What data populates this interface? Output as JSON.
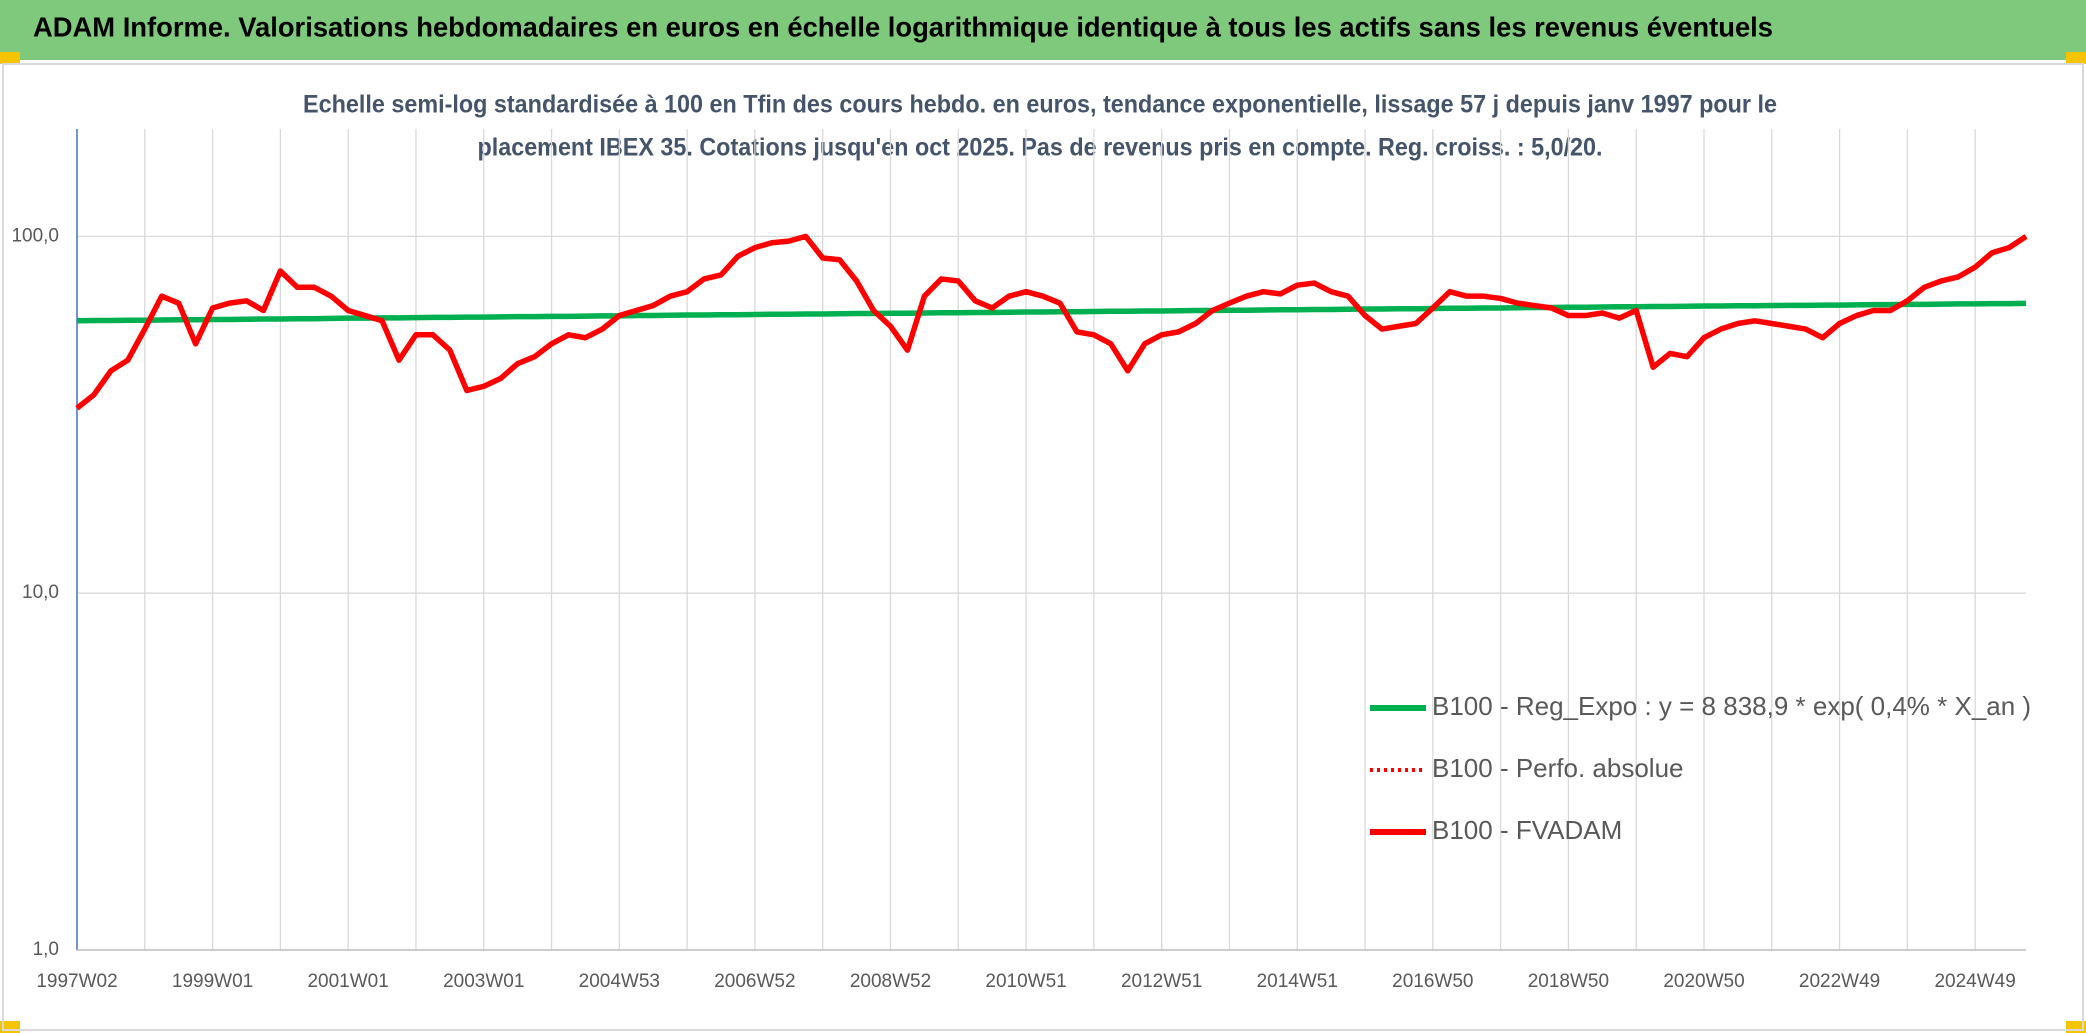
{
  "chart_data": {
    "type": "line",
    "title": "ADAM Informe. Valorisations hebdomadaires en euros en échelle logarithmique identique à tous les actifs sans les revenus éventuels",
    "subtitle": [
      "Echelle semi-log standardisée à 100 en Tfin des cours hebdo. en euros, tendance exponentielle, lissage 57 j depuis janv 1997 pour le",
      "placement IBEX 35. Cotations jusqu'en oct 2025. Pas de revenus pris en compte. Reg. croiss. : 5,0/20."
    ],
    "log_scale": true,
    "grid": true,
    "legend_position": "right",
    "ylim": [
      1,
      200
    ],
    "yticks": [
      {
        "value": 1,
        "label": "1,0"
      },
      {
        "value": 10,
        "label": "10,0"
      },
      {
        "value": 100,
        "label": "100,0"
      }
    ],
    "categories": [
      "1997W02",
      null,
      null,
      null,
      null,
      null,
      null,
      null,
      "1999W01",
      null,
      null,
      null,
      null,
      null,
      null,
      null,
      "2001W01",
      null,
      null,
      null,
      null,
      null,
      null,
      null,
      "2003W01",
      null,
      null,
      null,
      null,
      null,
      null,
      null,
      "2004W53",
      null,
      null,
      null,
      null,
      null,
      null,
      null,
      "2006W52",
      null,
      null,
      null,
      null,
      null,
      null,
      null,
      "2008W52",
      null,
      null,
      null,
      null,
      null,
      null,
      null,
      "2010W51",
      null,
      null,
      null,
      null,
      null,
      null,
      null,
      "2012W51",
      null,
      null,
      null,
      null,
      null,
      null,
      null,
      "2014W51",
      null,
      null,
      null,
      null,
      null,
      null,
      null,
      "2016W50",
      null,
      null,
      null,
      null,
      null,
      null,
      null,
      "2018W50",
      null,
      null,
      null,
      null,
      null,
      null,
      null,
      "2020W50",
      null,
      null,
      null,
      null,
      null,
      null,
      null,
      "2022W49",
      null,
      null,
      null,
      null,
      null,
      null,
      null,
      "2024W49",
      null,
      null,
      null
    ],
    "series": [
      {
        "name": "B100 - Reg_Expo : y = 8 838,9 * exp( 0,4% *  X_an )",
        "color": "#00b050",
        "dash": "solid",
        "values": [
          58.0,
          58.1,
          58.1,
          58.2,
          58.2,
          58.3,
          58.4,
          58.4,
          58.5,
          58.5,
          58.6,
          58.7,
          58.7,
          58.8,
          58.8,
          58.9,
          59.0,
          59.0,
          59.1,
          59.1,
          59.2,
          59.3,
          59.3,
          59.4,
          59.4,
          59.5,
          59.6,
          59.6,
          59.7,
          59.7,
          59.8,
          59.9,
          59.9,
          60.0,
          60.0,
          60.1,
          60.2,
          60.2,
          60.3,
          60.3,
          60.4,
          60.5,
          60.5,
          60.6,
          60.6,
          60.7,
          60.8,
          60.8,
          60.9,
          60.9,
          61.0,
          61.1,
          61.1,
          61.2,
          61.2,
          61.3,
          61.4,
          61.4,
          61.5,
          61.5,
          61.6,
          61.7,
          61.7,
          61.8,
          61.8,
          61.9,
          62.0,
          62.0,
          62.1,
          62.1,
          62.2,
          62.3,
          62.3,
          62.4,
          62.4,
          62.5,
          62.6,
          62.6,
          62.7,
          62.7,
          62.8,
          62.9,
          62.9,
          63.0,
          63.0,
          63.1,
          63.2,
          63.2,
          63.3,
          63.3,
          63.4,
          63.5,
          63.5,
          63.6,
          63.6,
          63.7,
          63.8,
          63.8,
          63.9,
          63.9,
          64.0,
          64.1,
          64.1,
          64.2,
          64.2,
          64.3,
          64.4,
          64.4,
          64.5,
          64.5,
          64.6,
          64.7,
          64.7,
          64.8,
          64.8,
          64.9
        ]
      },
      {
        "name": "B100 - Perfo. absolue",
        "color": "#ff0000",
        "dash": "dotted",
        "values": [
          33,
          36,
          42,
          45,
          55,
          68,
          65,
          50,
          63,
          65,
          66,
          62,
          80,
          72,
          72,
          68,
          62,
          60,
          58,
          45,
          53,
          53,
          48,
          37,
          38,
          40,
          44,
          46,
          50,
          53,
          52,
          55,
          60,
          62,
          64,
          68,
          70,
          76,
          78,
          88,
          93,
          96,
          97,
          100,
          87,
          86,
          75,
          62,
          56,
          48,
          68,
          76,
          75,
          66,
          63,
          68,
          70,
          68,
          65,
          54,
          53,
          50,
          42,
          50,
          53,
          54,
          57,
          62,
          65,
          68,
          70,
          69,
          73,
          74,
          70,
          68,
          60,
          55,
          56,
          57,
          63,
          70,
          68,
          68,
          67,
          65,
          64,
          63,
          60,
          60,
          61,
          59,
          62,
          43,
          47,
          46,
          52,
          55,
          57,
          58,
          57,
          56,
          55,
          52,
          57,
          60,
          62,
          62,
          66,
          72,
          75,
          77,
          82,
          90,
          93,
          100
        ]
      },
      {
        "name": "B100 - FVADAM",
        "color": "#ff0000",
        "dash": "solid",
        "values": [
          33,
          36,
          42,
          45,
          55,
          68,
          65,
          50,
          63,
          65,
          66,
          62,
          80,
          72,
          72,
          68,
          62,
          60,
          58,
          45,
          53,
          53,
          48,
          37,
          38,
          40,
          44,
          46,
          50,
          53,
          52,
          55,
          60,
          62,
          64,
          68,
          70,
          76,
          78,
          88,
          93,
          96,
          97,
          100,
          87,
          86,
          75,
          62,
          56,
          48,
          68,
          76,
          75,
          66,
          63,
          68,
          70,
          68,
          65,
          54,
          53,
          50,
          42,
          50,
          53,
          54,
          57,
          62,
          65,
          68,
          70,
          69,
          73,
          74,
          70,
          68,
          60,
          55,
          56,
          57,
          63,
          70,
          68,
          68,
          67,
          65,
          64,
          63,
          60,
          60,
          61,
          59,
          62,
          43,
          47,
          46,
          52,
          55,
          57,
          58,
          57,
          56,
          55,
          52,
          57,
          60,
          62,
          62,
          66,
          72,
          75,
          77,
          82,
          90,
          93,
          100
        ]
      }
    ]
  }
}
